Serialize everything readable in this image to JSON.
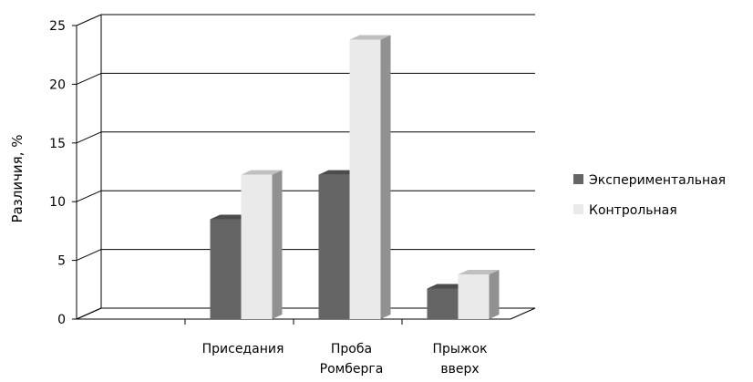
{
  "chart_data": {
    "type": "bar",
    "title": "",
    "xlabel": "",
    "ylabel": "Различия, %",
    "ylim": [
      0,
      25
    ],
    "yticks": [
      0,
      5,
      10,
      15,
      20,
      25
    ],
    "grid": true,
    "style": "3d-column",
    "legend_position": "right",
    "categories": [
      [
        "",
        ""
      ],
      [
        "Приседания",
        ""
      ],
      [
        "Проба",
        "Ромберга"
      ],
      [
        "Прыжок",
        "вверх"
      ]
    ],
    "series": [
      {
        "name": "Экспериментальная",
        "color": "#656565",
        "values": [
          null,
          8.5,
          12.3,
          2.6
        ]
      },
      {
        "name": "Контрольная",
        "color": "#eaeaea",
        "values": [
          null,
          12.3,
          23.8,
          3.8
        ]
      }
    ]
  }
}
